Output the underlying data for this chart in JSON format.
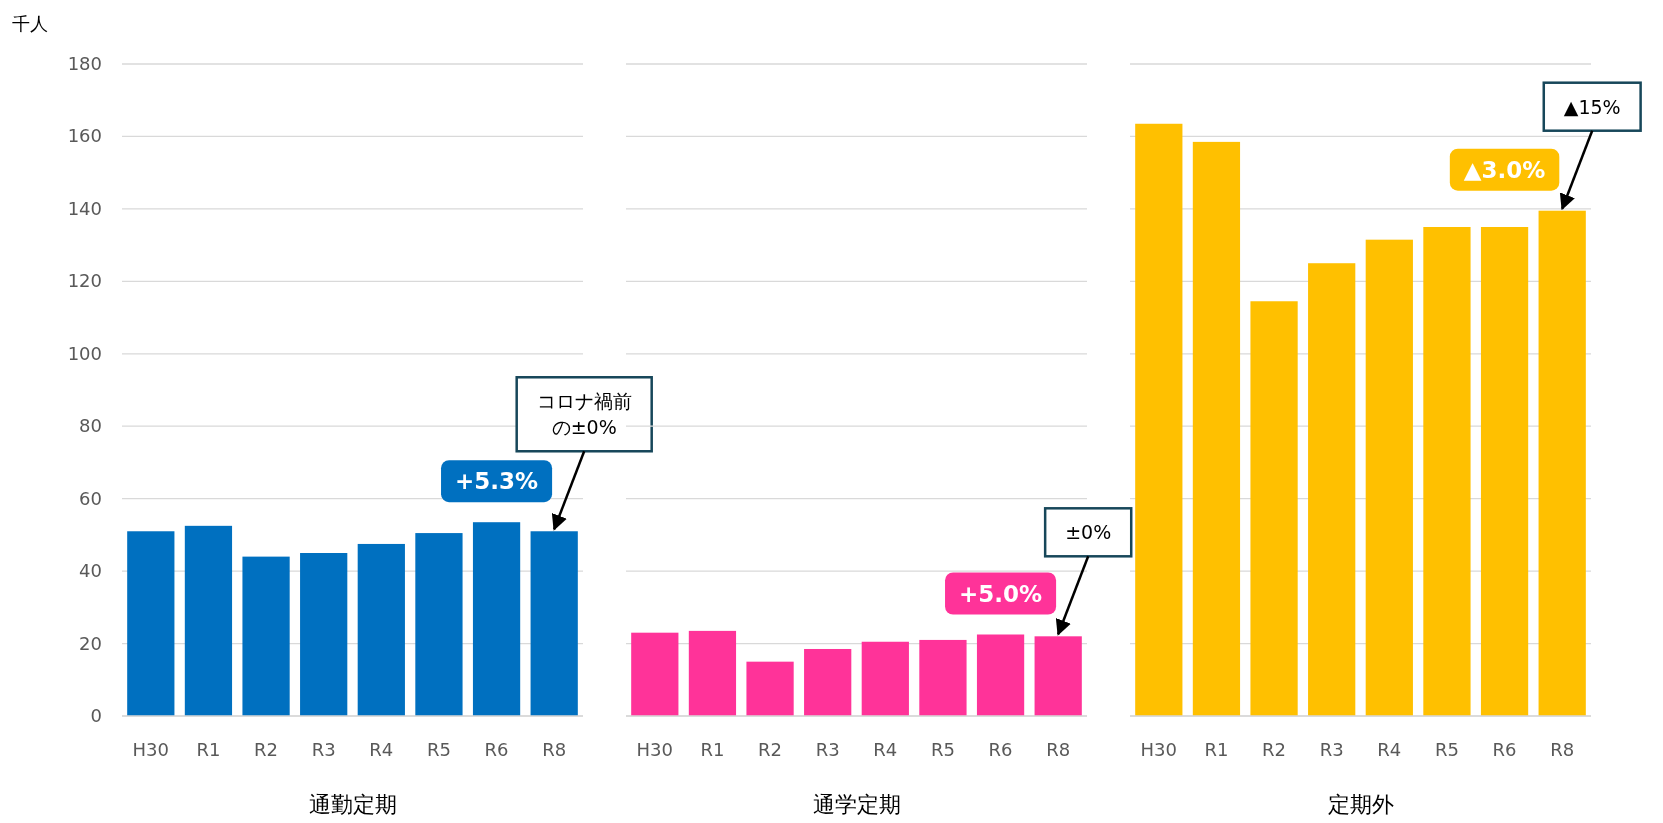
{
  "chart_data": [
    {
      "type": "bar",
      "ylabel": "千人",
      "xlabel": "通勤定期",
      "categories": [
        "H30",
        "R1",
        "R2",
        "R3",
        "R4",
        "R5",
        "R6",
        "R8"
      ],
      "values": [
        51,
        52.5,
        44,
        45,
        47.5,
        50.5,
        53.5,
        51
      ],
      "color": "#0070c0",
      "ylim": [
        0,
        180
      ],
      "yticks": [
        0,
        20,
        40,
        60,
        80,
        100,
        120,
        140,
        160,
        180
      ],
      "grid": "y",
      "annotations": [
        "+5.3%",
        {
          "text": "コロナ禍前の±0%",
          "x": "R8",
          "y": 51
        }
      ]
    },
    {
      "type": "bar",
      "xlabel": "通学定期",
      "categories": [
        "H30",
        "R1",
        "R2",
        "R3",
        "R4",
        "R5",
        "R6",
        "R8"
      ],
      "values": [
        23,
        23.5,
        15,
        18.5,
        20.5,
        21,
        22.5,
        22
      ],
      "color": "#ff3399",
      "ylim": [
        0,
        180
      ],
      "yticks": [
        0,
        20,
        40,
        60,
        80,
        100,
        120,
        140,
        160,
        180
      ],
      "grid": "y",
      "tick_labels": "x",
      "annotations": [
        "+5.0%",
        {
          "text": "±0%",
          "x": "R8",
          "y": 22
        }
      ]
    },
    {
      "type": "bar",
      "xlabel": "定期外",
      "categories": [
        "H30",
        "R1",
        "R2",
        "R3",
        "R4",
        "R5",
        "R6",
        "R8"
      ],
      "values": [
        163.5,
        158.5,
        114.5,
        125,
        131.5,
        135,
        135,
        139.5
      ],
      "color": "#ffc000",
      "ylim": [
        0,
        180
      ],
      "yticks": [
        0,
        20,
        40,
        60,
        80,
        100,
        120,
        140,
        160,
        180
      ],
      "grid": "y",
      "tick_labels": "x",
      "annotations": [
        "▲3.0%",
        {
          "text": "▲15%",
          "x": "R8",
          "y": 139.5
        }
      ]
    }
  ]
}
